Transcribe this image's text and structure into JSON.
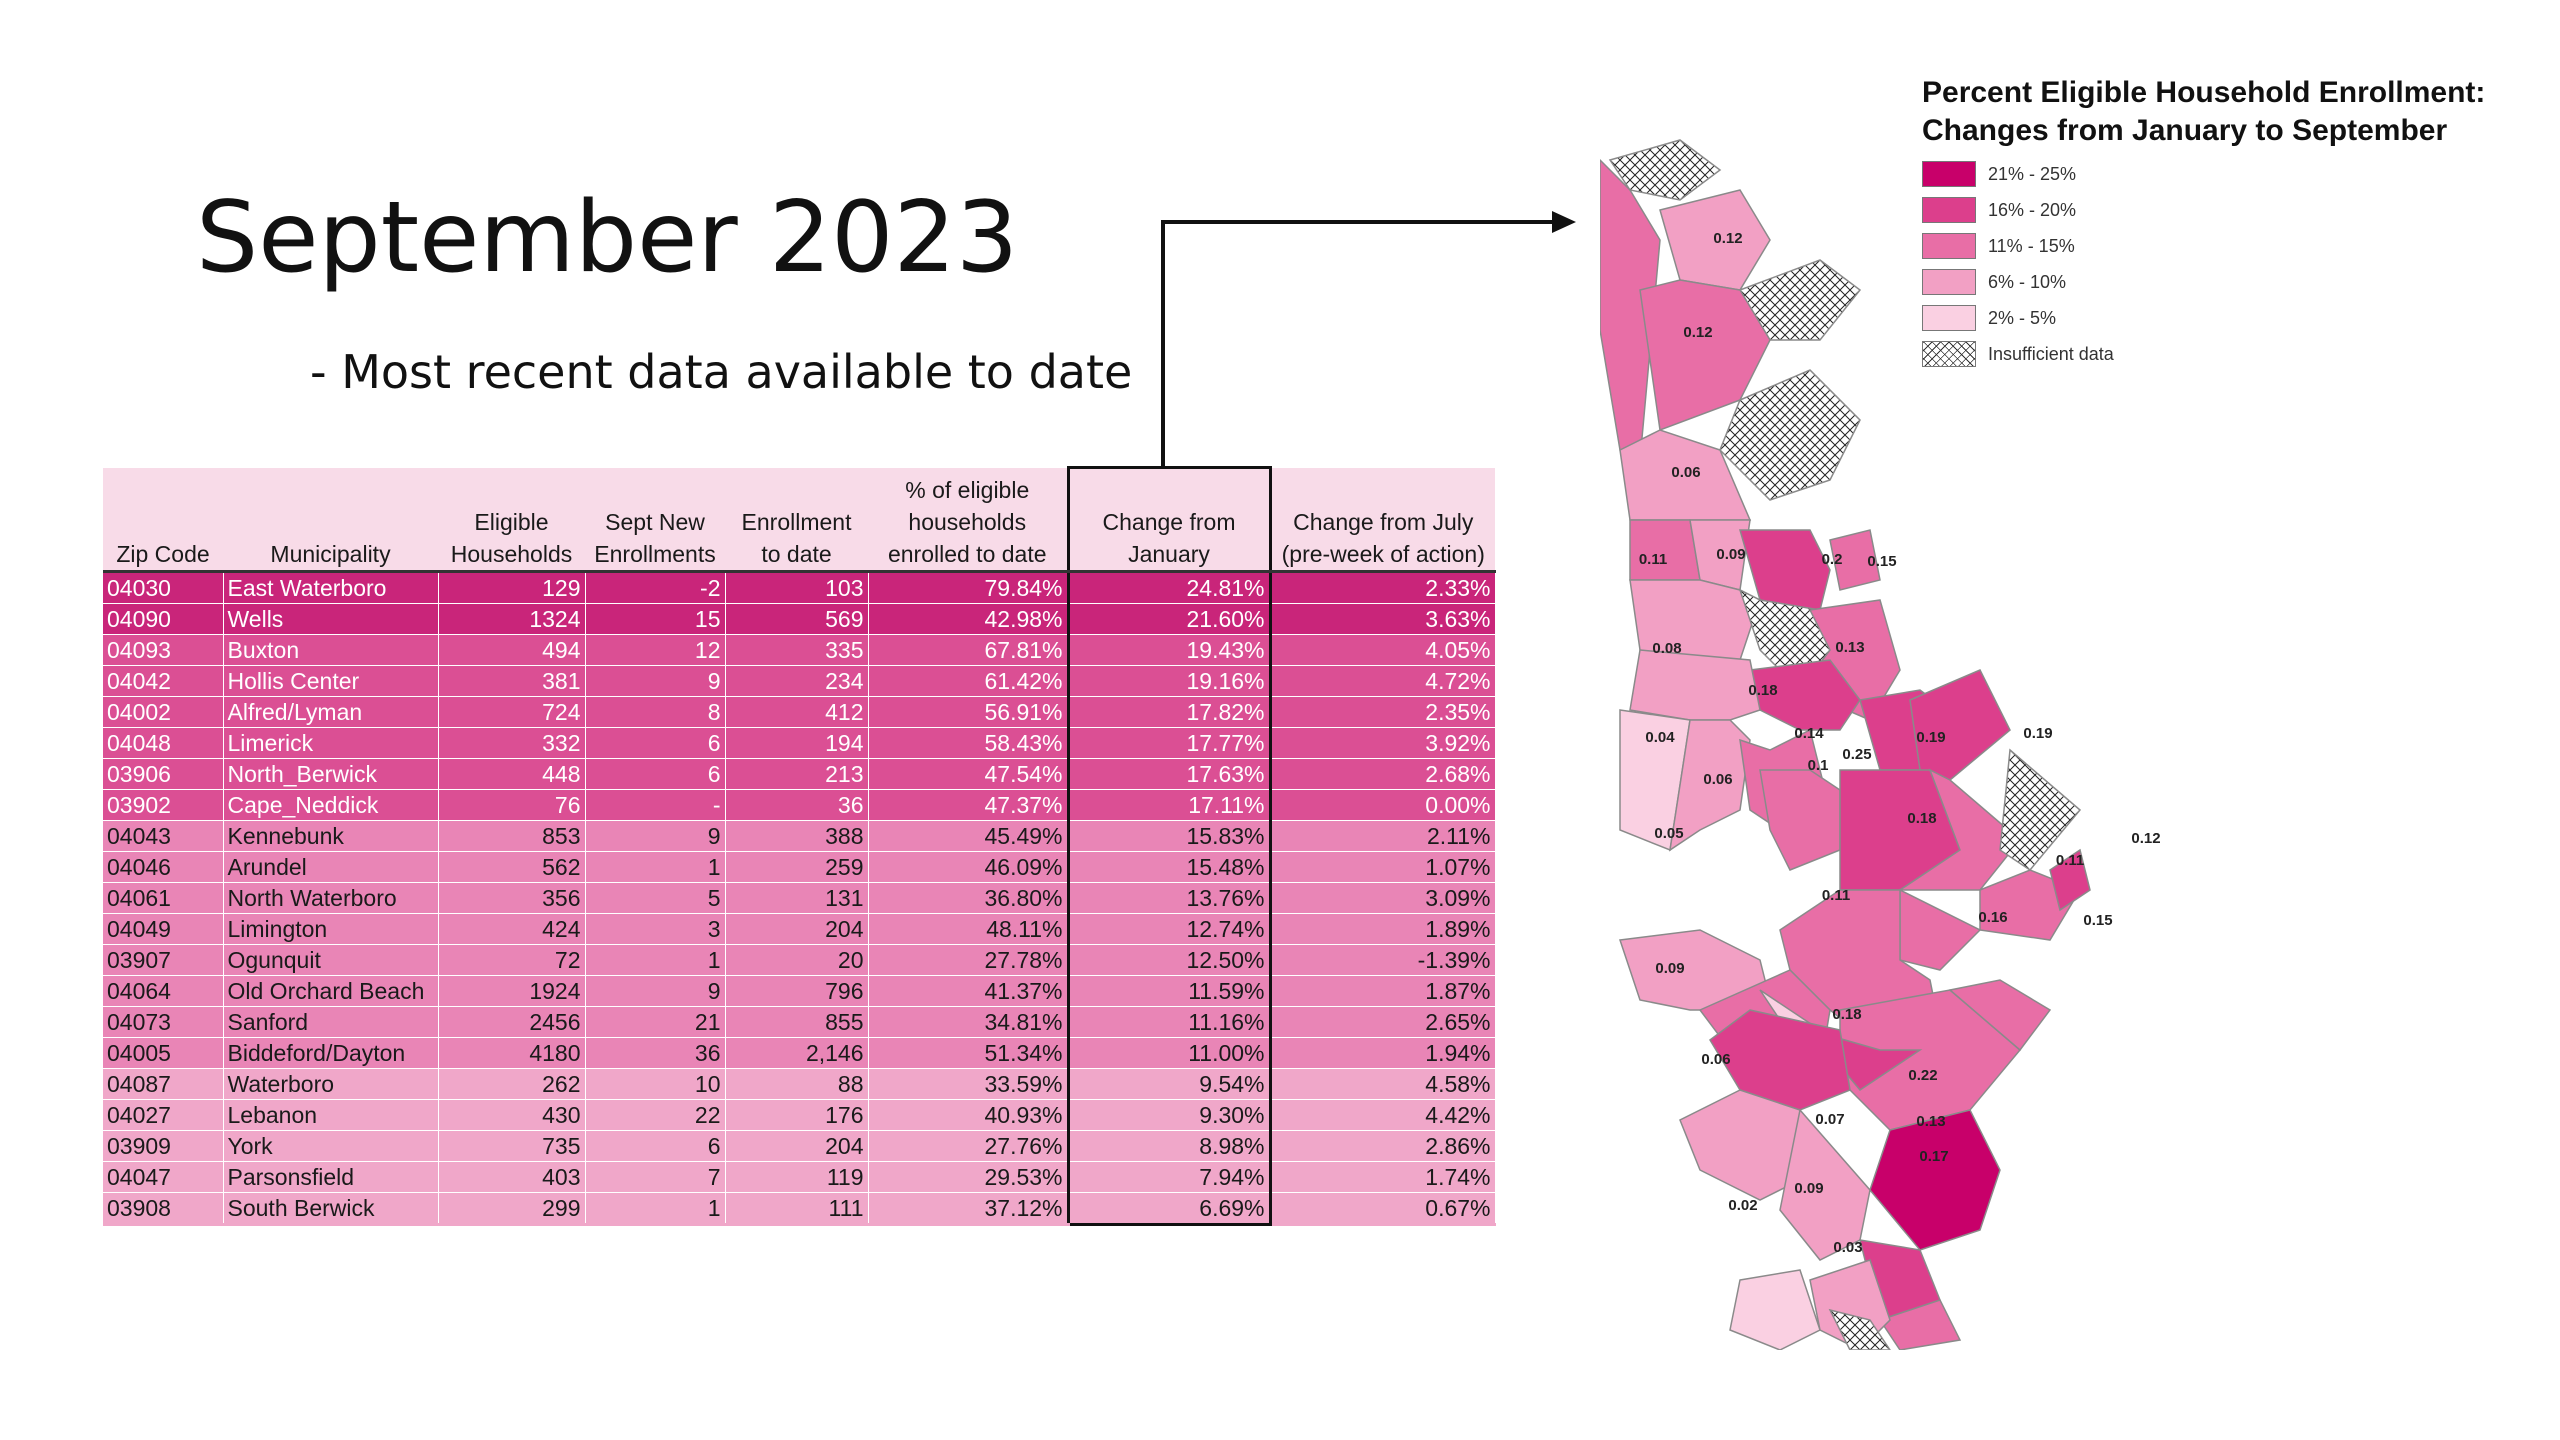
{
  "slide": {
    "title": "September 2023",
    "subtitle": "- Most recent data available to date"
  },
  "table": {
    "headers": {
      "zip": "Zip Code",
      "municipality": "Municipality",
      "eligible": "Eligible Households",
      "sept_new": "Sept New Enrollments",
      "enrollment": "Enrollment to date",
      "pct": "% of eligible households enrolled to date",
      "change_jan": "Change from January",
      "change_july": "Change from July (pre-week of action)"
    },
    "rows": [
      {
        "zip": "04030",
        "municipality": "East Waterboro",
        "eligible": "129",
        "sept_new": "-2",
        "enrollment": "103",
        "pct": "79.84%",
        "change_jan": "24.81%",
        "change_july": "2.33%",
        "tier": "t1"
      },
      {
        "zip": "04090",
        "municipality": "Wells",
        "eligible": "1324",
        "sept_new": "15",
        "enrollment": "569",
        "pct": "42.98%",
        "change_jan": "21.60%",
        "change_july": "3.63%",
        "tier": "t1"
      },
      {
        "zip": "04093",
        "municipality": "Buxton",
        "eligible": "494",
        "sept_new": "12",
        "enrollment": "335",
        "pct": "67.81%",
        "change_jan": "19.43%",
        "change_july": "4.05%",
        "tier": "t2"
      },
      {
        "zip": "04042",
        "municipality": "Hollis Center",
        "eligible": "381",
        "sept_new": "9",
        "enrollment": "234",
        "pct": "61.42%",
        "change_jan": "19.16%",
        "change_july": "4.72%",
        "tier": "t2"
      },
      {
        "zip": "04002",
        "municipality": "Alfred/Lyman",
        "eligible": "724",
        "sept_new": "8",
        "enrollment": "412",
        "pct": "56.91%",
        "change_jan": "17.82%",
        "change_july": "2.35%",
        "tier": "t2"
      },
      {
        "zip": "04048",
        "municipality": "Limerick",
        "eligible": "332",
        "sept_new": "6",
        "enrollment": "194",
        "pct": "58.43%",
        "change_jan": "17.77%",
        "change_july": "3.92%",
        "tier": "t2"
      },
      {
        "zip": "03906",
        "municipality": "North_Berwick",
        "eligible": "448",
        "sept_new": "6",
        "enrollment": "213",
        "pct": "47.54%",
        "change_jan": "17.63%",
        "change_july": "2.68%",
        "tier": "t2"
      },
      {
        "zip": "03902",
        "municipality": "Cape_Neddick",
        "eligible": "76",
        "sept_new": "-",
        "enrollment": "36",
        "pct": "47.37%",
        "change_jan": "17.11%",
        "change_july": "0.00%",
        "tier": "t2"
      },
      {
        "zip": "04043",
        "municipality": "Kennebunk",
        "eligible": "853",
        "sept_new": "9",
        "enrollment": "388",
        "pct": "45.49%",
        "change_jan": "15.83%",
        "change_july": "2.11%",
        "tier": "t3"
      },
      {
        "zip": "04046",
        "municipality": "Arundel",
        "eligible": "562",
        "sept_new": "1",
        "enrollment": "259",
        "pct": "46.09%",
        "change_jan": "15.48%",
        "change_july": "1.07%",
        "tier": "t3"
      },
      {
        "zip": "04061",
        "municipality": "North Waterboro",
        "eligible": "356",
        "sept_new": "5",
        "enrollment": "131",
        "pct": "36.80%",
        "change_jan": "13.76%",
        "change_july": "3.09%",
        "tier": "t3"
      },
      {
        "zip": "04049",
        "municipality": "Limington",
        "eligible": "424",
        "sept_new": "3",
        "enrollment": "204",
        "pct": "48.11%",
        "change_jan": "12.74%",
        "change_july": "1.89%",
        "tier": "t3"
      },
      {
        "zip": "03907",
        "municipality": "Ogunquit",
        "eligible": "72",
        "sept_new": "1",
        "enrollment": "20",
        "pct": "27.78%",
        "change_jan": "12.50%",
        "change_july": "-1.39%",
        "tier": "t3"
      },
      {
        "zip": "04064",
        "municipality": "Old Orchard Beach",
        "eligible": "1924",
        "sept_new": "9",
        "enrollment": "796",
        "pct": "41.37%",
        "change_jan": "11.59%",
        "change_july": "1.87%",
        "tier": "t3"
      },
      {
        "zip": "04073",
        "municipality": "Sanford",
        "eligible": "2456",
        "sept_new": "21",
        "enrollment": "855",
        "pct": "34.81%",
        "change_jan": "11.16%",
        "change_july": "2.65%",
        "tier": "t3"
      },
      {
        "zip": "04005",
        "municipality": "Biddeford/Dayton",
        "eligible": "4180",
        "sept_new": "36",
        "enrollment": "2,146",
        "pct": "51.34%",
        "change_jan": "11.00%",
        "change_july": "1.94%",
        "tier": "t3"
      },
      {
        "zip": "04087",
        "municipality": "Waterboro",
        "eligible": "262",
        "sept_new": "10",
        "enrollment": "88",
        "pct": "33.59%",
        "change_jan": "9.54%",
        "change_july": "4.58%",
        "tier": "t4"
      },
      {
        "zip": "04027",
        "municipality": "Lebanon",
        "eligible": "430",
        "sept_new": "22",
        "enrollment": "176",
        "pct": "40.93%",
        "change_jan": "9.30%",
        "change_july": "4.42%",
        "tier": "t4"
      },
      {
        "zip": "03909",
        "municipality": "York",
        "eligible": "735",
        "sept_new": "6",
        "enrollment": "204",
        "pct": "27.76%",
        "change_jan": "8.98%",
        "change_july": "2.86%",
        "tier": "t4"
      },
      {
        "zip": "04047",
        "municipality": "Parsonsfield",
        "eligible": "403",
        "sept_new": "7",
        "enrollment": "119",
        "pct": "29.53%",
        "change_jan": "7.94%",
        "change_july": "1.74%",
        "tier": "t4"
      },
      {
        "zip": "03908",
        "municipality": "South Berwick",
        "eligible": "299",
        "sept_new": "1",
        "enrollment": "111",
        "pct": "37.12%",
        "change_jan": "6.69%",
        "change_july": "0.67%",
        "tier": "t4"
      }
    ]
  },
  "legend": {
    "title_line1": "Percent Eligible Household Enrollment:",
    "title_line2": "Changes from January to September",
    "items": [
      {
        "label": "21% - 25%",
        "color": "#c8006a"
      },
      {
        "label": "16% - 20%",
        "color": "#dc3f8c"
      },
      {
        "label": "11% - 15%",
        "color": "#e86ea6"
      },
      {
        "label": "6% - 10%",
        "color": "#f2a0c4"
      },
      {
        "label": "2% - 5%",
        "color": "#fad0e2"
      },
      {
        "label": "Insufficient data",
        "color": "hatch"
      }
    ]
  },
  "map": {
    "region_labels": [
      "0.12",
      "0.12",
      "0.06",
      "0.11",
      "0.09",
      "0.2",
      "0.15",
      "0.08",
      "0.13",
      "0.18",
      "0.04",
      "0.14",
      "0.25",
      "0.19",
      "0.19",
      "0.1",
      "0.06",
      "0.05",
      "0.18",
      "0.12",
      "0.11",
      "0.11",
      "0.16",
      "0.15",
      "0.09",
      "0.18",
      "0.06",
      "0.22",
      "0.07",
      "0.13",
      "0.17",
      "0.02",
      "0.09",
      "0.03"
    ]
  }
}
